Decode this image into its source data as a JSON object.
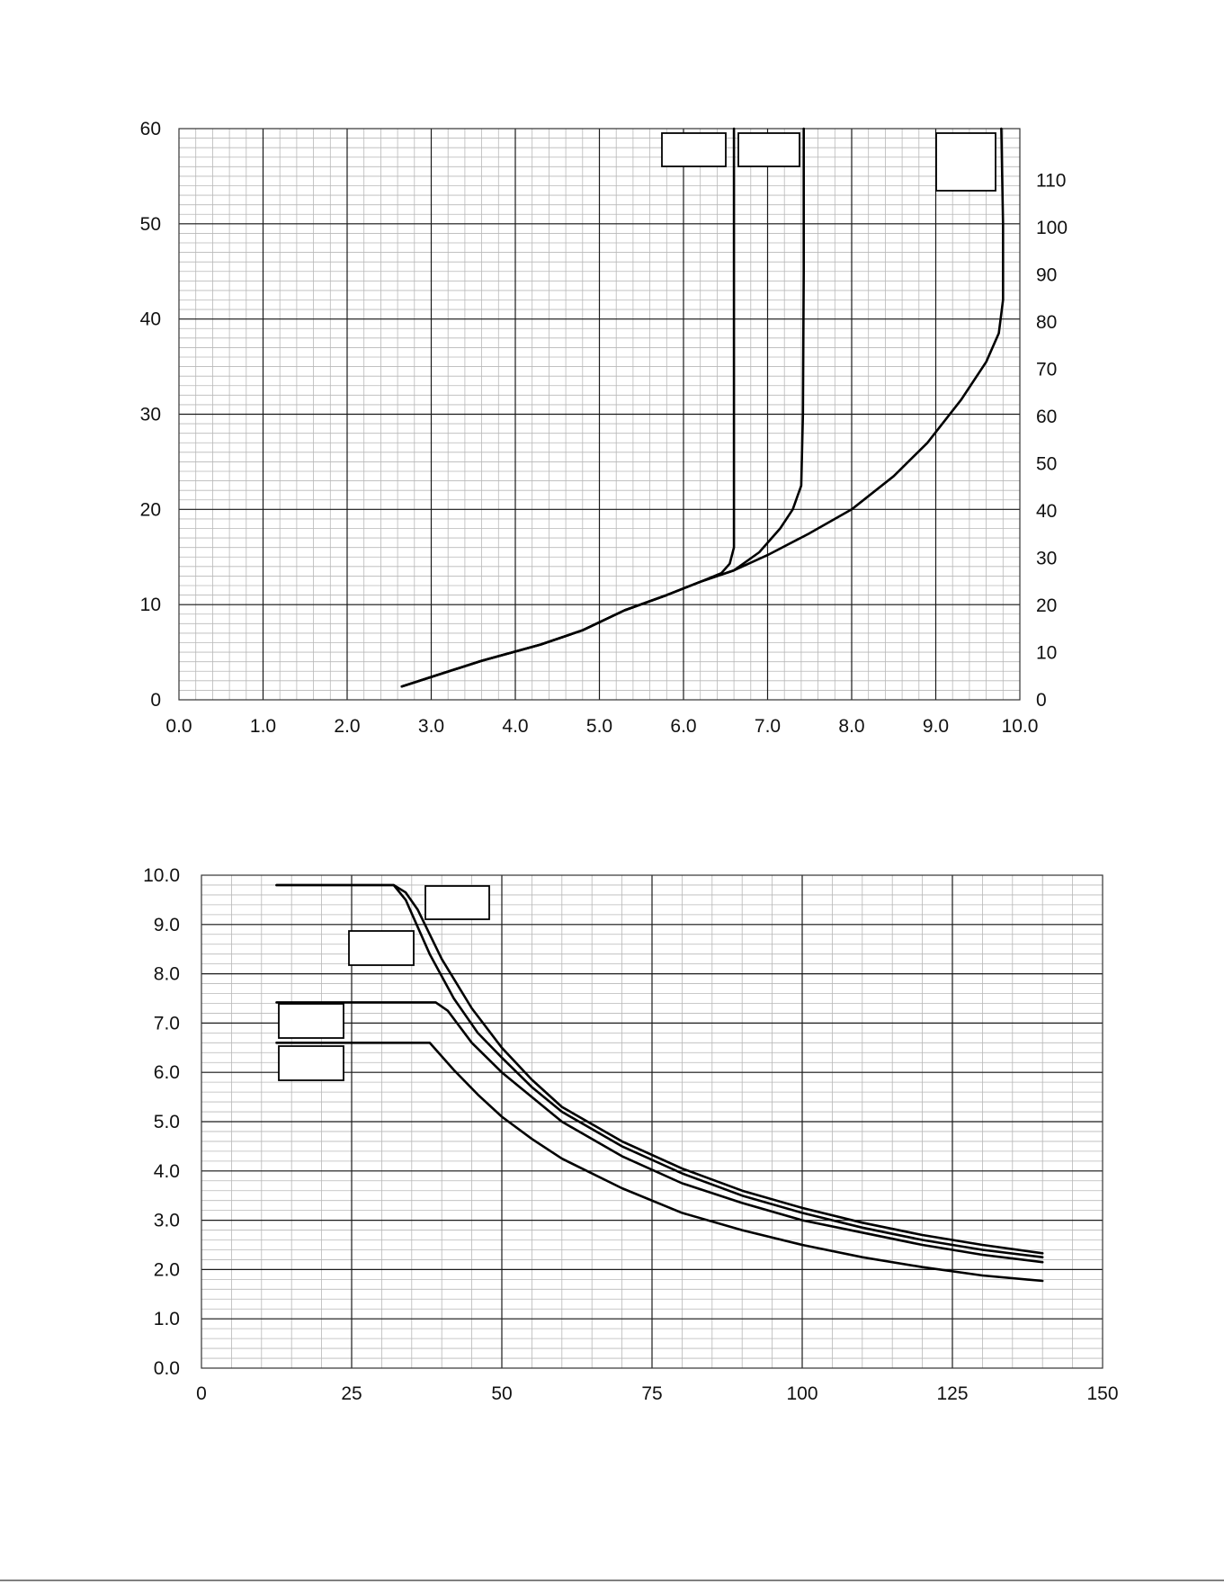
{
  "chart_data": [
    {
      "type": "line",
      "title": "",
      "xlabel": "",
      "ylabel": "",
      "xlim": [
        0,
        10
      ],
      "ylim": [
        0,
        60
      ],
      "y2lim": [
        0,
        121
      ],
      "grid": true,
      "x_ticks": [
        "0.0",
        "1.0",
        "2.0",
        "3.0",
        "4.0",
        "5.0",
        "6.0",
        "7.0",
        "8.0",
        "9.0",
        "10.0"
      ],
      "y_ticks": [
        "0",
        "10",
        "20",
        "30",
        "40",
        "50",
        "60"
      ],
      "y2_ticks": [
        "0",
        "10",
        "20",
        "30",
        "40",
        "50",
        "60",
        "70",
        "80",
        "90",
        "100",
        "110"
      ],
      "series": [
        {
          "x": [
            2.65,
            3.0,
            3.6,
            4.3,
            4.8,
            5.3,
            5.8,
            6.2,
            6.45,
            6.55,
            6.6,
            6.6,
            6.6,
            6.6
          ],
          "values": [
            1.4,
            2.4,
            4.1,
            5.8,
            7.3,
            9.4,
            11.0,
            12.4,
            13.3,
            14.3,
            16.0,
            25.0,
            40.0,
            60.0
          ]
        },
        {
          "x": [
            2.65,
            3.0,
            3.6,
            4.3,
            4.8,
            5.3,
            5.8,
            6.2,
            6.6,
            6.9,
            7.15,
            7.3,
            7.4,
            7.42,
            7.43,
            7.43
          ],
          "values": [
            1.4,
            2.4,
            4.1,
            5.8,
            7.3,
            9.4,
            11.0,
            12.4,
            13.6,
            15.5,
            18.0,
            20.0,
            22.5,
            30.0,
            45.0,
            60.0
          ]
        },
        {
          "x": [
            2.65,
            3.0,
            3.6,
            4.3,
            4.8,
            5.3,
            5.8,
            6.2,
            6.6,
            7.0,
            7.5,
            8.0,
            8.5,
            8.9,
            9.3,
            9.6,
            9.75,
            9.8,
            9.8,
            9.78
          ],
          "values": [
            1.4,
            2.4,
            4.1,
            5.8,
            7.3,
            9.4,
            11.0,
            12.4,
            13.6,
            15.2,
            17.5,
            20.0,
            23.5,
            27.0,
            31.5,
            35.5,
            38.5,
            42.0,
            50.0,
            60.0
          ]
        }
      ]
    },
    {
      "type": "line",
      "title": "",
      "xlabel": "",
      "ylabel": "",
      "xlim": [
        0,
        150
      ],
      "ylim": [
        0,
        10
      ],
      "grid": true,
      "x_ticks": [
        "0",
        "25",
        "50",
        "75",
        "100",
        "125",
        "150"
      ],
      "y_ticks": [
        "0.0",
        "1.0",
        "2.0",
        "3.0",
        "4.0",
        "5.0",
        "6.0",
        "7.0",
        "8.0",
        "9.0",
        "10.0"
      ],
      "series": [
        {
          "x": [
            12.5,
            32,
            34,
            36,
            40,
            45,
            50,
            55,
            60,
            70,
            80,
            90,
            100,
            110,
            120,
            130,
            140
          ],
          "values": [
            9.8,
            9.8,
            9.65,
            9.3,
            8.3,
            7.3,
            6.5,
            5.85,
            5.3,
            4.6,
            4.05,
            3.6,
            3.25,
            2.95,
            2.7,
            2.5,
            2.33
          ]
        },
        {
          "x": [
            12.5,
            32,
            34,
            38,
            42,
            46,
            50,
            55,
            60,
            70,
            80,
            90,
            100,
            110,
            120,
            130,
            140
          ],
          "values": [
            9.8,
            9.8,
            9.5,
            8.4,
            7.5,
            6.8,
            6.3,
            5.7,
            5.2,
            4.5,
            3.95,
            3.5,
            3.15,
            2.85,
            2.6,
            2.4,
            2.25
          ]
        },
        {
          "x": [
            12.5,
            39,
            41,
            45,
            50,
            55,
            60,
            70,
            80,
            90,
            100,
            110,
            120,
            130,
            140
          ],
          "values": [
            7.42,
            7.42,
            7.25,
            6.6,
            6.0,
            5.5,
            5.0,
            4.3,
            3.75,
            3.35,
            3.0,
            2.75,
            2.5,
            2.3,
            2.15
          ]
        },
        {
          "x": [
            12.5,
            38,
            42,
            46,
            50,
            55,
            60,
            70,
            80,
            90,
            100,
            110,
            120,
            130,
            140
          ],
          "values": [
            6.6,
            6.6,
            6.05,
            5.55,
            5.1,
            4.65,
            4.25,
            3.65,
            3.15,
            2.8,
            2.5,
            2.25,
            2.05,
            1.88,
            1.77
          ]
        }
      ]
    }
  ]
}
